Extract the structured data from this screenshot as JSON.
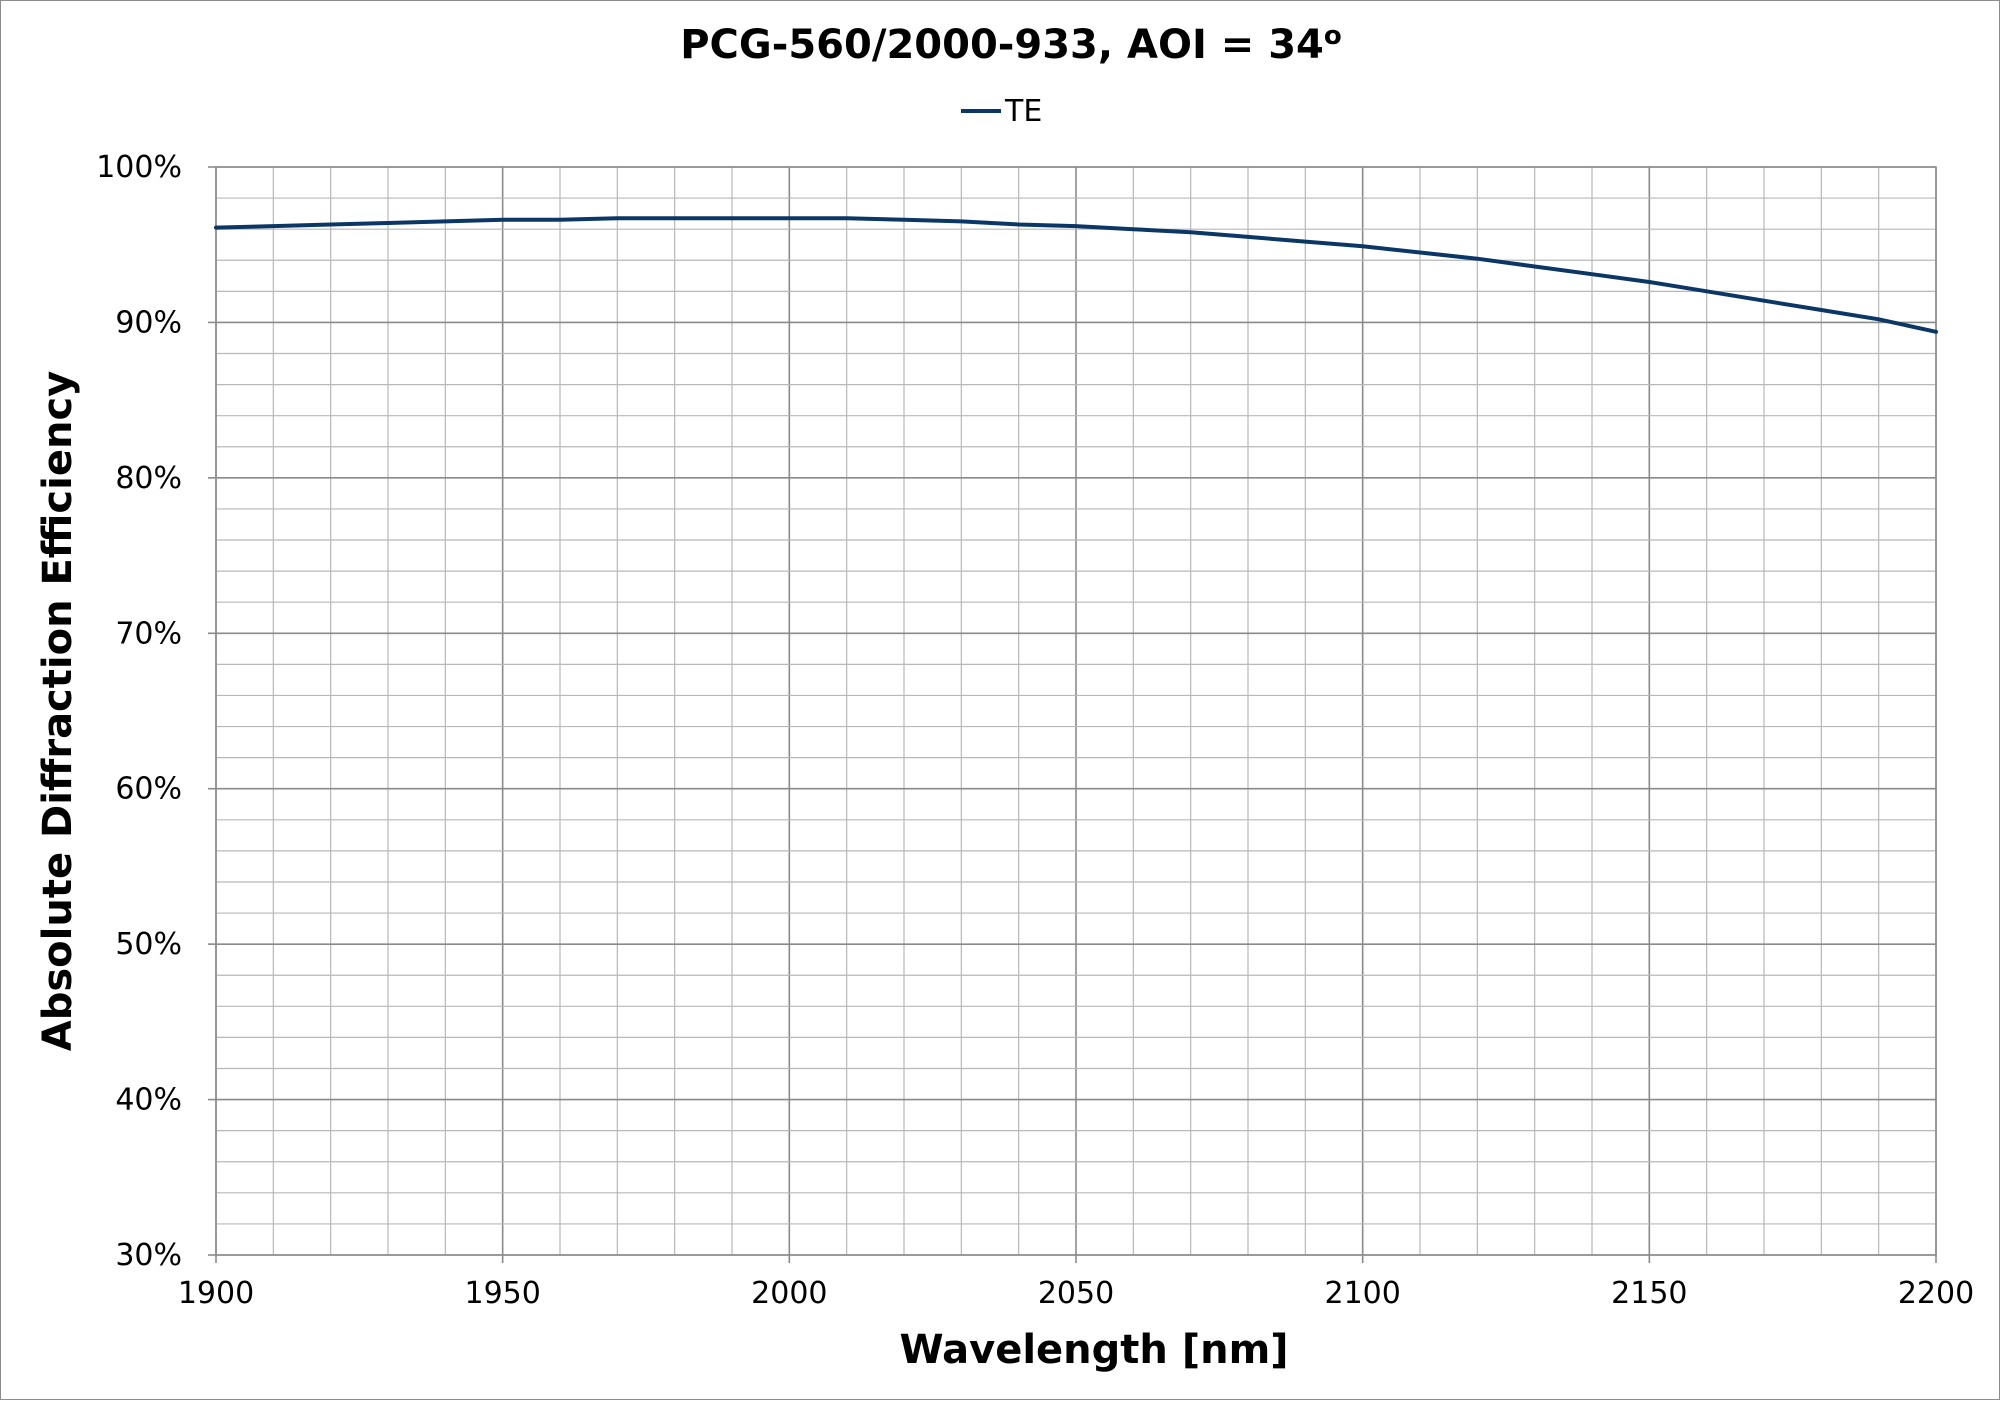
{
  "chart_data": {
    "type": "line",
    "title": "PCG-560/2000-933, AOI = 34",
    "title_superscript": "o",
    "xlabel": "Wavelength [nm]",
    "ylabel": "Absolute Diffraction Efficiency",
    "xlim": [
      1900,
      2200
    ],
    "ylim": [
      0.3,
      1.0
    ],
    "x_ticks": [
      1900,
      1950,
      2000,
      2050,
      2100,
      2150,
      2200
    ],
    "x_tick_labels": [
      "1900",
      "1950",
      "2000",
      "2050",
      "2100",
      "2150",
      "2200"
    ],
    "y_ticks": [
      0.3,
      0.4,
      0.5,
      0.6,
      0.7,
      0.8,
      0.9,
      1.0
    ],
    "y_tick_labels": [
      "30%",
      "40%",
      "50%",
      "60%",
      "70%",
      "80%",
      "90%",
      "100%"
    ],
    "x_minor_step": 10,
    "y_minor_step": 0.02,
    "grid": true,
    "legend_position": "top-center",
    "series": [
      {
        "name": "TE",
        "color": "#0b3766",
        "x": [
          1900,
          1910,
          1920,
          1930,
          1940,
          1950,
          1960,
          1970,
          1980,
          1990,
          2000,
          2010,
          2020,
          2030,
          2040,
          2050,
          2060,
          2070,
          2080,
          2090,
          2100,
          2110,
          2120,
          2130,
          2140,
          2150,
          2160,
          2170,
          2180,
          2190,
          2200
        ],
        "y": [
          0.961,
          0.962,
          0.963,
          0.964,
          0.965,
          0.966,
          0.966,
          0.967,
          0.967,
          0.967,
          0.967,
          0.967,
          0.966,
          0.965,
          0.963,
          0.962,
          0.96,
          0.958,
          0.955,
          0.952,
          0.949,
          0.945,
          0.941,
          0.936,
          0.931,
          0.926,
          0.92,
          0.914,
          0.908,
          0.902,
          0.894
        ]
      }
    ]
  }
}
